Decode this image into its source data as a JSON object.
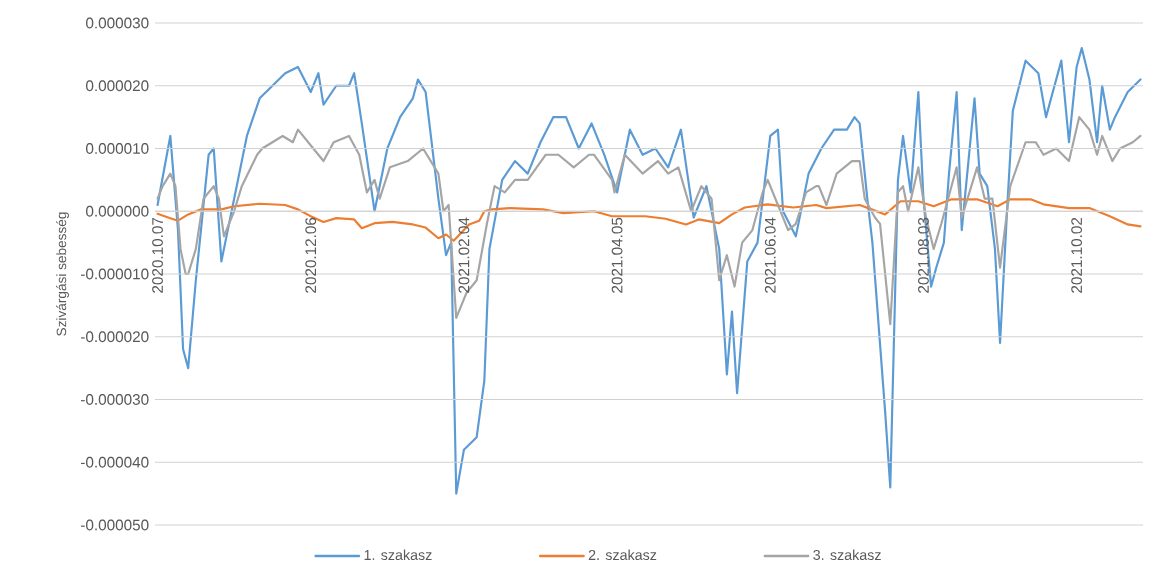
{
  "chart_data": {
    "type": "line",
    "ylabel": "Szivárgási sebesség",
    "xlim": [
      "2020-10-06",
      "2021-10-28"
    ],
    "xticks": [
      {
        "value": "2020-10-07",
        "label": "2020.10.07"
      },
      {
        "value": "2020-12-06",
        "label": "2020.12.06"
      },
      {
        "value": "2021-02-04",
        "label": "2021.02.04"
      },
      {
        "value": "2021-04-05",
        "label": "2021.04.05"
      },
      {
        "value": "2021-06-04",
        "label": "2021.06.04"
      },
      {
        "value": "2021-08-03",
        "label": "2021.08.03"
      },
      {
        "value": "2021-10-02",
        "label": "2021.10.02"
      }
    ],
    "ylim": [
      -5e-05,
      3e-05
    ],
    "yticks": [
      {
        "value": -5e-05,
        "label": "-0.000050"
      },
      {
        "value": -4e-05,
        "label": "-0.000040"
      },
      {
        "value": -3e-05,
        "label": "-0.000030"
      },
      {
        "value": -2e-05,
        "label": "-0.000020"
      },
      {
        "value": -1e-05,
        "label": "-0.000010"
      },
      {
        "value": 0,
        "label": "0.000000"
      },
      {
        "value": 1e-05,
        "label": "0.000010"
      },
      {
        "value": 2e-05,
        "label": "0.000020"
      },
      {
        "value": 3e-05,
        "label": "0.000030"
      }
    ],
    "grid": "y",
    "legend": "bottom",
    "series": [
      {
        "name": "1. szakasz",
        "color": "#5b9bd5",
        "x": [
          "2020-10-07",
          "2020-10-12",
          "2020-10-15",
          "2020-10-17",
          "2020-10-19",
          "2020-10-22",
          "2020-10-27",
          "2020-10-29",
          "2020-11-01",
          "2020-11-06",
          "2020-11-11",
          "2020-11-16",
          "2020-11-21",
          "2020-11-26",
          "2020-12-01",
          "2020-12-06",
          "2020-12-09",
          "2020-12-11",
          "2020-12-16",
          "2020-12-21",
          "2020-12-23",
          "2020-12-26",
          "2020-12-31",
          "2021-01-05",
          "2021-01-10",
          "2021-01-15",
          "2021-01-17",
          "2021-01-20",
          "2021-01-25",
          "2021-01-28",
          "2021-01-30",
          "2021-02-01",
          "2021-02-04",
          "2021-02-09",
          "2021-02-12",
          "2021-02-14",
          "2021-02-19",
          "2021-02-24",
          "2021-03-01",
          "2021-03-06",
          "2021-03-11",
          "2021-03-16",
          "2021-03-21",
          "2021-03-26",
          "2021-03-31",
          "2021-04-05",
          "2021-04-10",
          "2021-04-15",
          "2021-04-20",
          "2021-04-25",
          "2021-04-30",
          "2021-05-05",
          "2021-05-10",
          "2021-05-15",
          "2021-05-18",
          "2021-05-20",
          "2021-05-22",
          "2021-05-26",
          "2021-05-30",
          "2021-06-04",
          "2021-06-07",
          "2021-06-09",
          "2021-06-14",
          "2021-06-19",
          "2021-06-24",
          "2021-06-29",
          "2021-07-04",
          "2021-07-07",
          "2021-07-09",
          "2021-07-12",
          "2021-07-14",
          "2021-07-19",
          "2021-07-21",
          "2021-07-24",
          "2021-07-26",
          "2021-07-29",
          "2021-08-01",
          "2021-08-03",
          "2021-08-06",
          "2021-08-08",
          "2021-08-11",
          "2021-08-13",
          "2021-08-16",
          "2021-08-18",
          "2021-08-23",
          "2021-08-25",
          "2021-08-28",
          "2021-08-31",
          "2021-09-02",
          "2021-09-05",
          "2021-09-07",
          "2021-09-12",
          "2021-09-17",
          "2021-09-20",
          "2021-09-22",
          "2021-09-26",
          "2021-09-29",
          "2021-10-02",
          "2021-10-04",
          "2021-10-07",
          "2021-10-10",
          "2021-10-12",
          "2021-10-15",
          "2021-10-17",
          "2021-10-22",
          "2021-10-27"
        ],
        "values": [
          1e-06,
          1.2e-05,
          -3e-06,
          -2.2e-05,
          -2.5e-05,
          -1.1e-05,
          9e-06,
          1e-05,
          -8e-06,
          2e-06,
          1.2e-05,
          1.8e-05,
          2e-05,
          2.2e-05,
          2.3e-05,
          1.9e-05,
          2.2e-05,
          1.7e-05,
          2e-05,
          2e-05,
          2.2e-05,
          1.4e-05,
          0,
          1e-05,
          1.5e-05,
          1.8e-05,
          2.1e-05,
          1.9e-05,
          2e-06,
          -7e-06,
          -5e-06,
          -4.5e-05,
          -3.8e-05,
          -3.6e-05,
          -2.7e-05,
          -6e-06,
          5e-06,
          8e-06,
          6e-06,
          1.1e-05,
          1.5e-05,
          1.5e-05,
          1e-05,
          1.4e-05,
          9e-06,
          3e-06,
          1.3e-05,
          9e-06,
          1e-05,
          7e-06,
          1.3e-05,
          -1e-06,
          4e-06,
          -6e-06,
          -2.6e-05,
          -1.6e-05,
          -2.9e-05,
          -8e-06,
          -5e-06,
          1.2e-05,
          1.3e-05,
          0,
          -4e-06,
          6e-06,
          1e-05,
          1.3e-05,
          1.3e-05,
          1.5e-05,
          1.4e-05,
          2e-06,
          -5e-06,
          -3.2e-05,
          -4.4e-05,
          5e-06,
          1.2e-05,
          3e-06,
          1.9e-05,
          2e-06,
          -1.2e-05,
          -9e-06,
          -5e-06,
          6e-06,
          1.9e-05,
          -3e-06,
          1.8e-05,
          6e-06,
          4e-06,
          -6e-06,
          -2.1e-05,
          2e-06,
          1.6e-05,
          2.4e-05,
          2.2e-05,
          1.5e-05,
          1.8e-05,
          2.4e-05,
          1.1e-05,
          2.3e-05,
          2.6e-05,
          2.1e-05,
          1.1e-05,
          2e-05,
          1.3e-05,
          1.5e-05,
          1.9e-05,
          2.1e-05
        ]
      },
      {
        "name": "2. szakasz",
        "color": "#ed7d31",
        "x": [
          "2020-10-07",
          "2020-10-12",
          "2020-10-15",
          "2020-10-19",
          "2020-10-24",
          "2020-11-01",
          "2020-11-06",
          "2020-11-16",
          "2020-11-26",
          "2020-12-01",
          "2020-12-06",
          "2020-12-11",
          "2020-12-16",
          "2020-12-23",
          "2020-12-26",
          "2020-12-31",
          "2021-01-07",
          "2021-01-15",
          "2021-01-20",
          "2021-01-25",
          "2021-01-28",
          "2021-01-31",
          "2021-02-06",
          "2021-02-10",
          "2021-02-12",
          "2021-02-15",
          "2021-02-22",
          "2021-03-07",
          "2021-03-15",
          "2021-03-27",
          "2021-04-03",
          "2021-04-16",
          "2021-04-24",
          "2021-05-02",
          "2021-05-07",
          "2021-05-15",
          "2021-05-20",
          "2021-05-25",
          "2021-06-03",
          "2021-06-13",
          "2021-06-22",
          "2021-06-26",
          "2021-07-09",
          "2021-07-15",
          "2021-07-19",
          "2021-07-25",
          "2021-08-01",
          "2021-08-07",
          "2021-08-14",
          "2021-08-24",
          "2021-09-01",
          "2021-09-06",
          "2021-09-14",
          "2021-09-19",
          "2021-09-29",
          "2021-10-07",
          "2021-10-15",
          "2021-10-22",
          "2021-10-27"
        ],
        "values": [
          -4e-07,
          -1.1e-06,
          -1.5e-06,
          -5e-07,
          3e-07,
          3e-07,
          8e-07,
          1.2e-06,
          1e-06,
          3e-07,
          -8e-07,
          -1.7e-06,
          -1.1e-06,
          -1.3e-06,
          -2.7e-06,
          -1.9e-06,
          -1.7e-06,
          -2.1e-06,
          -2.6e-06,
          -4.3e-06,
          -3.7e-06,
          -4.7e-06,
          -2.1e-06,
          -1.5e-06,
          0,
          3e-07,
          5e-07,
          3e-07,
          -3e-07,
          0,
          -8e-07,
          -8e-07,
          -1.2e-06,
          -2.1e-06,
          -1.3e-06,
          -1.9e-06,
          -5e-07,
          6e-07,
          1.1e-06,
          6e-07,
          1e-06,
          5e-07,
          1e-06,
          1e-07,
          -5e-07,
          1.6e-06,
          1.6e-06,
          8e-07,
          1.9e-06,
          1.9e-06,
          8e-07,
          1.9e-06,
          1.9e-06,
          1.1e-06,
          5e-07,
          5e-07,
          -8e-07,
          -2.1e-06,
          -2.4e-06
        ]
      },
      {
        "name": "3. szakasz",
        "color": "#a5a5a5",
        "x": [
          "2020-10-07",
          "2020-10-09",
          "2020-10-12",
          "2020-10-14",
          "2020-10-16",
          "2020-10-18",
          "2020-10-19",
          "2020-10-22",
          "2020-10-25",
          "2020-10-29",
          "2020-10-31",
          "2020-11-02",
          "2020-11-06",
          "2020-11-09",
          "2020-11-15",
          "2020-11-17",
          "2020-11-21",
          "2020-11-25",
          "2020-11-29",
          "2020-12-01",
          "2020-12-07",
          "2020-12-11",
          "2020-12-15",
          "2020-12-21",
          "2020-12-25",
          "2020-12-28",
          "2020-12-31",
          "2021-01-02",
          "2021-01-06",
          "2021-01-13",
          "2021-01-19",
          "2021-01-25",
          "2021-01-27",
          "2021-01-29",
          "2021-02-01",
          "2021-02-05",
          "2021-02-09",
          "2021-02-13",
          "2021-02-16",
          "2021-02-20",
          "2021-02-24",
          "2021-03-01",
          "2021-03-08",
          "2021-03-13",
          "2021-03-19",
          "2021-03-25",
          "2021-03-27",
          "2021-04-03",
          "2021-04-04",
          "2021-04-08",
          "2021-04-15",
          "2021-04-21",
          "2021-04-25",
          "2021-04-29",
          "2021-05-04",
          "2021-05-08",
          "2021-05-12",
          "2021-05-15",
          "2021-05-18",
          "2021-05-21",
          "2021-05-24",
          "2021-05-28",
          "2021-06-01",
          "2021-06-03",
          "2021-06-07",
          "2021-06-11",
          "2021-06-14",
          "2021-06-18",
          "2021-06-22",
          "2021-06-23",
          "2021-06-26",
          "2021-06-30",
          "2021-07-06",
          "2021-07-09",
          "2021-07-11",
          "2021-07-15",
          "2021-07-17",
          "2021-07-21",
          "2021-07-24",
          "2021-07-26",
          "2021-07-28",
          "2021-08-01",
          "2021-08-04",
          "2021-08-07",
          "2021-08-10",
          "2021-08-16",
          "2021-08-18",
          "2021-08-24",
          "2021-08-27",
          "2021-08-30",
          "2021-09-02",
          "2021-09-06",
          "2021-09-12",
          "2021-09-16",
          "2021-09-19",
          "2021-09-24",
          "2021-09-29",
          "2021-10-03",
          "2021-10-07",
          "2021-10-10",
          "2021-10-12",
          "2021-10-16",
          "2021-10-19",
          "2021-10-24",
          "2021-10-27"
        ],
        "values": [
          2e-06,
          4e-06,
          6e-06,
          4e-06,
          -6e-06,
          -1e-05,
          -1e-05,
          -6e-06,
          2e-06,
          4e-06,
          2e-06,
          -4e-06,
          0,
          4e-06,
          9e-06,
          1e-05,
          1.1e-05,
          1.2e-05,
          1.1e-05,
          1.3e-05,
          1e-05,
          8e-06,
          1.1e-05,
          1.2e-05,
          9e-06,
          3e-06,
          5e-06,
          2e-06,
          7e-06,
          8e-06,
          1e-05,
          6e-06,
          0,
          1e-06,
          -1.7e-05,
          -1.3e-05,
          -1.1e-05,
          -2e-06,
          4e-06,
          3e-06,
          5e-06,
          5e-06,
          9e-06,
          9e-06,
          7e-06,
          9e-06,
          9e-06,
          5e-06,
          3e-06,
          9e-06,
          6e-06,
          8e-06,
          6e-06,
          7e-06,
          0,
          4e-06,
          2e-06,
          -1.1e-05,
          -7e-06,
          -1.2e-05,
          -5e-06,
          -3e-06,
          3e-06,
          5e-06,
          1e-06,
          -3e-06,
          -2e-06,
          3e-06,
          4e-06,
          4e-06,
          1e-06,
          6e-06,
          8e-06,
          8e-06,
          2e-06,
          -1e-06,
          -2e-06,
          -1.8e-05,
          3e-06,
          4e-06,
          0,
          7e-06,
          -1e-06,
          -6e-06,
          -2e-06,
          7e-06,
          -1e-06,
          7e-06,
          2e-06,
          2e-06,
          -9e-06,
          4e-06,
          1.1e-05,
          1.1e-05,
          9e-06,
          1e-05,
          8e-06,
          1.5e-05,
          1.3e-05,
          9e-06,
          1.2e-05,
          8e-06,
          1e-05,
          1.1e-05,
          1.2e-05
        ]
      }
    ]
  }
}
